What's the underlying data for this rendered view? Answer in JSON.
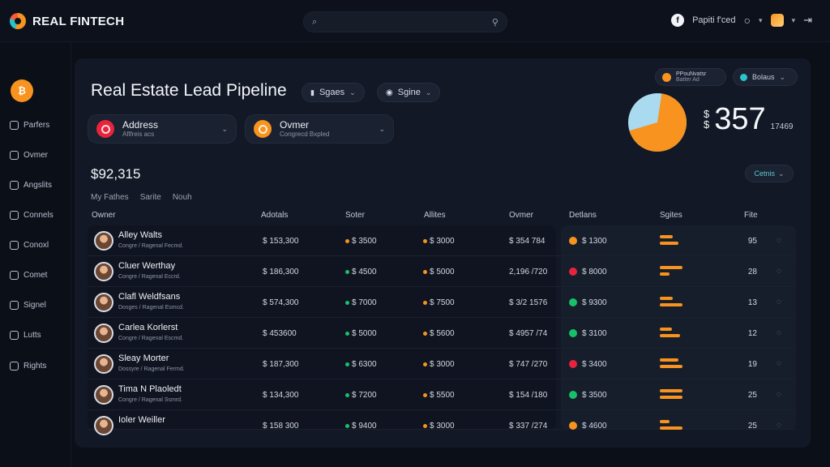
{
  "app": {
    "name": "REAL FINTECH"
  },
  "topbar": {
    "user_label": "Papiti f'ced",
    "bell_glyph": "f"
  },
  "sidebar": {
    "items": [
      {
        "label": "Parfers",
        "icon": "home-icon"
      },
      {
        "label": "Ovmer",
        "icon": "house-icon"
      },
      {
        "label": "Angslits",
        "icon": "chart-icon"
      },
      {
        "label": "Connels",
        "icon": "phone-icon"
      },
      {
        "label": "Conoxl",
        "icon": "gear-icon"
      },
      {
        "label": "Comet",
        "icon": "document-icon"
      },
      {
        "label": "Signel",
        "icon": "clipboard-icon"
      },
      {
        "label": "Lutts",
        "icon": "list-icon"
      },
      {
        "label": "Rights",
        "icon": "user-icon"
      }
    ]
  },
  "page": {
    "title": "Real Estate Lead Pipeline",
    "filter1": "Sgaes",
    "filter2": "Sgine",
    "card1": {
      "title": "Address",
      "sub": "Aflfreis acs",
      "color": "#e8243c"
    },
    "card2": {
      "title": "Ovmer",
      "sub": "Congrecd Bxpled",
      "color": "#f7931e"
    },
    "amount": "$92,315",
    "tabs": [
      "My Fathes",
      "Sarite",
      "Nouh"
    ],
    "chip1": {
      "line1": "PPouNvatsr",
      "line2": "Batter Ad"
    },
    "chip2": "Bolaus",
    "stat_value": "357",
    "stat_prefix": "$\n$",
    "stat_sub": "17469",
    "details_label": "Cetnis",
    "pie_share": 0.68,
    "colors": {
      "accent": "#f7931e",
      "pie_secondary": "#a9daf0",
      "green": "#18c06a",
      "red": "#e8243c"
    }
  },
  "table": {
    "headers": [
      "Owner",
      "Adotals",
      "Soter",
      "Allites",
      "Ovmer",
      "Detlans",
      "Sgites",
      "Fite"
    ],
    "rows": [
      {
        "name": "Alley Walts",
        "sub": "Congre / Ragenal Fecmd.",
        "c1": "$ 153,300",
        "c2": "$ 3500",
        "c2dot": "#f7931e",
        "c3": "$ 3000",
        "c3dot": "#f7931e",
        "c4": "$ 354 784",
        "status": "#f7931e",
        "c5": "$ 1300",
        "bar1": 0.34,
        "bar2": 0.5,
        "num": "95"
      },
      {
        "name": "Cluer Werthay",
        "sub": "Congre / Ragenal Eccrd.",
        "c1": "$ 186,300",
        "c2": "$ 4500",
        "c2dot": "#18c06a",
        "c3": "$ 5000",
        "c3dot": "#f7931e",
        "c4": "2,196 /720",
        "status": "#e8243c",
        "c5": "$ 8000",
        "bar1": 0.6,
        "bar2": 0.25,
        "num": "28"
      },
      {
        "name": "Clafl Weldfsans",
        "sub": "Dosges / Ragenal Esmcd.",
        "c1": "$ 574,300",
        "c2": "$ 7000",
        "c2dot": "#18c06a",
        "c3": "$ 7500",
        "c3dot": "#f7931e",
        "c4": "$ 3/2 1576",
        "status": "#18c06a",
        "c5": "$ 9300",
        "bar1": 0.35,
        "bar2": 0.6,
        "num": "13"
      },
      {
        "name": "Carlea Korlerst",
        "sub": "Congre / Ragenal Escmd.",
        "c1": "$ 453600",
        "c2": "$ 5000",
        "c2dot": "#18c06a",
        "c3": "$ 5600",
        "c3dot": "#f7931e",
        "c4": "$ 4957 /74",
        "status": "#18c06a",
        "c5": "$ 3100",
        "bar1": 0.32,
        "bar2": 0.55,
        "num": "12"
      },
      {
        "name": "Sleay Morter",
        "sub": "Dossyre / Ragenal Fermd.",
        "c1": "$ 187,300",
        "c2": "$ 6300",
        "c2dot": "#18c06a",
        "c3": "$ 3000",
        "c3dot": "#f7931e",
        "c4": "$ 747 /270",
        "status": "#e8243c",
        "c5": "$ 3400",
        "bar1": 0.5,
        "bar2": 0.6,
        "num": "19"
      },
      {
        "name": "Tima N Plaoledt",
        "sub": "Congre / Ragenal Ssmrd.",
        "c1": "$ 134,300",
        "c2": "$ 7200",
        "c2dot": "#18c06a",
        "c3": "$ 5500",
        "c3dot": "#f7931e",
        "c4": "$ 154 /180",
        "status": "#18c06a",
        "c5": "$ 3500",
        "bar1": 0.6,
        "bar2": 0.6,
        "num": "25"
      },
      {
        "name": "Ioler Weiller",
        "sub": "",
        "c1": "$ 158 300",
        "c2": "$ 9400",
        "c2dot": "#18c06a",
        "c3": "$ 3000",
        "c3dot": "#f7931e",
        "c4": "$ 337 /274",
        "status": "#f7931e",
        "c5": "$ 4600",
        "bar1": 0.26,
        "bar2": 0.6,
        "num": "25"
      }
    ]
  }
}
